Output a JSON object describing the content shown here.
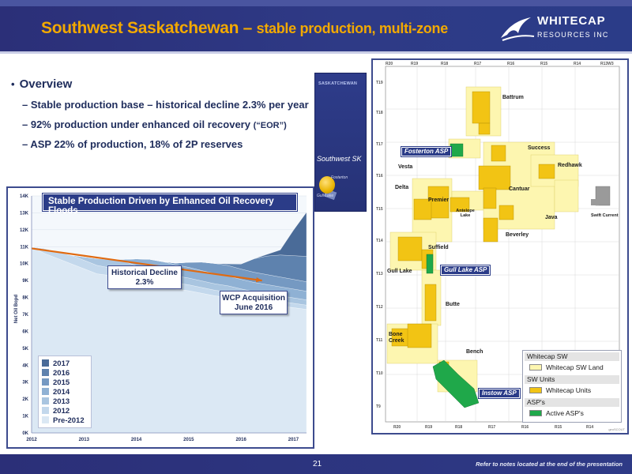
{
  "header": {
    "title_main": "Southwest Saskatchewan – ",
    "title_sub": "stable production, multi-zone",
    "logo_line1": "WHITECAP",
    "logo_line2": "RESOURCES INC"
  },
  "overview": {
    "heading": "Overview",
    "items": [
      {
        "text": "– Stable production base – historical decline 2.3% per year",
        "suffix": ""
      },
      {
        "text": "– 92% production under enhanced oil recovery ",
        "suffix": "(“EOR”)"
      },
      {
        "text": "– ASP 22% of production, 18% of 2P reserves",
        "suffix": ""
      }
    ]
  },
  "chart_data": {
    "type": "area",
    "title": "Stable Production Driven by Enhanced Oil Recovery Floods",
    "ylabel": "Net Oil Bopd",
    "ylim": [
      0,
      14000
    ],
    "yticks": [
      "0K",
      "1K",
      "2K",
      "3K",
      "4K",
      "5K",
      "6K",
      "7K",
      "8K",
      "9K",
      "10K",
      "11K",
      "12K",
      "13K",
      "14K"
    ],
    "x": [
      2012.0,
      2012.25,
      2012.5,
      2012.75,
      2013.0,
      2013.25,
      2013.5,
      2013.75,
      2014.0,
      2014.25,
      2014.5,
      2014.75,
      2015.0,
      2015.25,
      2015.5,
      2015.75,
      2016.0,
      2016.25,
      2016.5,
      2016.75,
      2017.0,
      2017.25
    ],
    "xticks": [
      "2012",
      "2013",
      "2014",
      "2015",
      "2016",
      "2017"
    ],
    "legend": [
      "2017",
      "2016",
      "2015",
      "2014",
      "2013",
      "2012",
      "Pre-2012"
    ],
    "legend_position": "bottom-left",
    "series": [
      {
        "name": "Pre-2012",
        "color": "#dbe8f4",
        "values": [
          11000,
          10600,
          10300,
          10000,
          9700,
          9400,
          9300,
          9200,
          9000,
          8800,
          8650,
          8500,
          8400,
          8250,
          8100,
          8000,
          7850,
          7700,
          7600,
          7500,
          7400,
          7300
        ]
      },
      {
        "name": "2012",
        "color": "#c3d8ec",
        "values": [
          0,
          300,
          400,
          500,
          500,
          500,
          450,
          450,
          400,
          400,
          380,
          360,
          350,
          340,
          330,
          320,
          300,
          290,
          280,
          270,
          260,
          250
        ]
      },
      {
        "name": "2013",
        "color": "#a9c5e0",
        "values": [
          0,
          0,
          0,
          0,
          200,
          400,
          500,
          500,
          480,
          460,
          440,
          420,
          400,
          390,
          380,
          370,
          360,
          350,
          340,
          330,
          320,
          310
        ]
      },
      {
        "name": "2014",
        "color": "#8fb1d4",
        "values": [
          0,
          0,
          0,
          0,
          0,
          0,
          0,
          100,
          400,
          600,
          650,
          650,
          630,
          610,
          600,
          580,
          560,
          550,
          540,
          530,
          520,
          510
        ]
      },
      {
        "name": "2015",
        "color": "#7599c2",
        "values": [
          0,
          0,
          0,
          0,
          0,
          0,
          0,
          0,
          0,
          0,
          0,
          100,
          300,
          500,
          600,
          620,
          610,
          600,
          590,
          580,
          570,
          560
        ]
      },
      {
        "name": "2016",
        "color": "#5e82ae",
        "values": [
          0,
          0,
          0,
          0,
          0,
          0,
          0,
          0,
          0,
          0,
          0,
          0,
          0,
          0,
          0,
          100,
          300,
          800,
          1100,
          1300,
          1400,
          1500
        ]
      },
      {
        "name": "2017",
        "color": "#4a6b98",
        "values": [
          0,
          0,
          0,
          0,
          0,
          0,
          0,
          0,
          0,
          0,
          0,
          0,
          0,
          0,
          0,
          0,
          0,
          0,
          100,
          300,
          1500,
          2600
        ]
      }
    ],
    "trend": {
      "from": [
        2012.0,
        10900
      ],
      "to": [
        2016.4,
        9000
      ],
      "color": "#e06a10"
    },
    "annotations": [
      {
        "text_line1": "Historical Decline",
        "text_line2": "2.3%"
      },
      {
        "text_line1": "WCP Acquisition",
        "text_line2": "June 2016"
      }
    ]
  },
  "inset_map": {
    "province": "SASKATCHEWAN",
    "region": "Southwest SK",
    "label_a": "Fosterton",
    "label_b": "Gull Lake"
  },
  "main_map": {
    "range_labels": [
      "R20",
      "R19",
      "R18",
      "R17",
      "R16",
      "R15",
      "R14",
      "R13W3"
    ],
    "range_labels_bottom": [
      "R20",
      "R19",
      "R18",
      "R17",
      "R16",
      "R15",
      "R14"
    ],
    "township_labels": [
      "T19",
      "T18",
      "T17",
      "T16",
      "T15",
      "T14",
      "T13",
      "T12",
      "T11",
      "T10",
      "T9"
    ],
    "places": [
      "Battrum",
      "Success",
      "Redhawk",
      "Cantuar",
      "Vesta",
      "Delta",
      "Premier",
      "Antelope Lake",
      "Java",
      "Swift Current",
      "Beverley",
      "Suffield",
      "Gull Lake",
      "Butte",
      "Bone Creek",
      "Bench"
    ],
    "asp_labels": [
      "Fosterton ASP",
      "Gull Lake ASP",
      "Instow ASP"
    ],
    "legend": {
      "group1": "Whitecap SW",
      "item1": "Whitecap SW Land",
      "group2": "SW Units",
      "item2": "Whitecap Units",
      "group3": "ASP's",
      "item3": "Active ASP's"
    },
    "colors": {
      "land": "#fdf6b0",
      "units": "#f2c414",
      "asp": "#1fa84a",
      "swift": "#9a9a9a"
    },
    "copyright": "geoSCOUT"
  },
  "footer": {
    "page_number": "21",
    "note": "Refer to notes located at the end of the presentation"
  }
}
